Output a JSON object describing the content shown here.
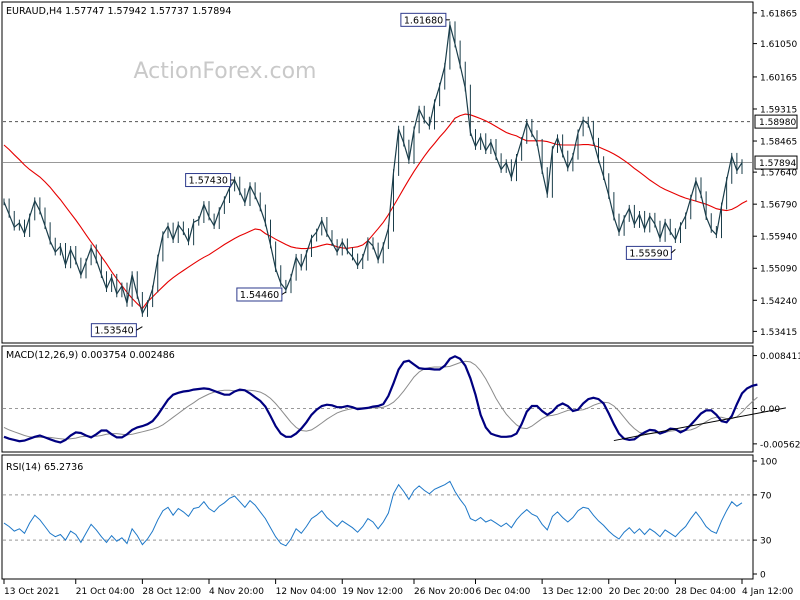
{
  "watermark": "ActionForex.com",
  "chart_data": [
    {
      "type": "line",
      "panel": "price",
      "title": "EURAUD,H4  1.57747  1.57942  1.57737  1.57894",
      "ylim": [
        1.5316,
        1.621
      ],
      "y_ticks": [
        "1.61865",
        "1.61050",
        "1.60165",
        "1.59315",
        "1.58465",
        "1.57640",
        "1.56790",
        "1.55940",
        "1.55090",
        "1.54240",
        "1.53415"
      ],
      "reference_lines": [
        {
          "value": 1.5898,
          "label": "1.58980",
          "style": "dashed"
        },
        {
          "value": 1.57894,
          "label": "1.57894",
          "style": "solid"
        }
      ],
      "annotations": [
        {
          "label": "1.53540",
          "x": 27
        },
        {
          "label": "1.57430",
          "x": 45
        },
        {
          "label": "1.54460",
          "x": 55
        },
        {
          "label": "1.61680",
          "x": 87
        },
        {
          "label": "1.55590",
          "x": 131
        }
      ],
      "x_labels": [
        {
          "i": 0,
          "label": "13 Oct 2021"
        },
        {
          "i": 14,
          "label": "21 Oct 04:00"
        },
        {
          "i": 27,
          "label": "28 Oct 12:00"
        },
        {
          "i": 40,
          "label": "4 Nov 20:00"
        },
        {
          "i": 53,
          "label": "12 Nov 04:00"
        },
        {
          "i": 66,
          "label": "19 Nov 12:00"
        },
        {
          "i": 80,
          "label": "26 Nov 20:00"
        },
        {
          "i": 92,
          "label": "6 Dec 04:00"
        },
        {
          "i": 105,
          "label": "13 Dec 12:00"
        },
        {
          "i": 118,
          "label": "20 Dec 20:00"
        },
        {
          "i": 131,
          "label": "28 Dec 04:00"
        },
        {
          "i": 144,
          "label": "4 Jan 12:00"
        }
      ],
      "series": [
        {
          "name": "price",
          "color": "#1a3d4a",
          "values": [
            1.5685,
            1.5652,
            1.5618,
            1.5629,
            1.5601,
            1.5645,
            1.5688,
            1.5661,
            1.5622,
            1.5581,
            1.5552,
            1.5567,
            1.5518,
            1.5559,
            1.5528,
            1.5491,
            1.5526,
            1.5563,
            1.5531,
            1.5492,
            1.5455,
            1.5485,
            1.5441,
            1.5462,
            1.5416,
            1.5492,
            1.5437,
            1.5389,
            1.5415,
            1.5454,
            1.5536,
            1.5598,
            1.5621,
            1.5585,
            1.5624,
            1.5606,
            1.5579,
            1.5631,
            1.5638,
            1.5678,
            1.5645,
            1.5622,
            1.5662,
            1.5691,
            1.5722,
            1.5743,
            1.5712,
            1.5683,
            1.5728,
            1.5701,
            1.5669,
            1.5629,
            1.5571,
            1.5508,
            1.5469,
            1.5452,
            1.5485,
            1.5538,
            1.5512,
            1.5548,
            1.5589,
            1.5605,
            1.5636,
            1.5601,
            1.5577,
            1.5552,
            1.5579,
            1.5555,
            1.5539,
            1.5516,
            1.5538,
            1.5582,
            1.5568,
            1.5531,
            1.5569,
            1.5615,
            1.5763,
            1.5878,
            1.5841,
            1.5795,
            1.5876,
            1.5931,
            1.5902,
            1.5886,
            1.5948,
            1.5992,
            1.6045,
            1.6155,
            1.6104,
            1.6048,
            1.5987,
            1.5869,
            1.5832,
            1.5858,
            1.5821,
            1.5843,
            1.5805,
            1.5771,
            1.5789,
            1.5749,
            1.5803,
            1.5848,
            1.5896,
            1.5866,
            1.5843,
            1.5768,
            1.5705,
            1.5824,
            1.5855,
            1.5812,
            1.5775,
            1.5806,
            1.5868,
            1.5902,
            1.5891,
            1.5846,
            1.5797,
            1.5752,
            1.5702,
            1.5645,
            1.5604,
            1.5641,
            1.5668,
            1.5625,
            1.5652,
            1.5613,
            1.5647,
            1.5626,
            1.5588,
            1.5631,
            1.5606,
            1.5585,
            1.5622,
            1.5648,
            1.5695,
            1.5741,
            1.5704,
            1.5646,
            1.5612,
            1.5598,
            1.5674,
            1.5742,
            1.5806,
            1.5768,
            1.5789
          ]
        },
        {
          "name": "ma",
          "color": "#e60000",
          "values": [
            1.5836,
            1.5824,
            1.581,
            1.5797,
            1.5783,
            1.5771,
            1.5761,
            1.5751,
            1.5738,
            1.5724,
            1.5707,
            1.5691,
            1.5673,
            1.5655,
            1.5637,
            1.5618,
            1.5598,
            1.5579,
            1.556,
            1.554,
            1.5521,
            1.55,
            1.5481,
            1.5463,
            1.5445,
            1.5429,
            1.5415,
            1.5402,
            1.542,
            1.5433,
            1.5447,
            1.546,
            1.5473,
            1.5484,
            1.5494,
            1.5503,
            1.5512,
            1.5521,
            1.553,
            1.5538,
            1.5545,
            1.5554,
            1.5563,
            1.5572,
            1.558,
            1.5588,
            1.5595,
            1.5601,
            1.5607,
            1.5613,
            1.5611,
            1.5601,
            1.5594,
            1.5586,
            1.5579,
            1.5572,
            1.5566,
            1.5563,
            1.5561,
            1.5561,
            1.5563,
            1.5566,
            1.557,
            1.5573,
            1.5571,
            1.5566,
            1.5563,
            1.5562,
            1.5564,
            1.5566,
            1.5571,
            1.5582,
            1.5598,
            1.5614,
            1.5631,
            1.5651,
            1.5674,
            1.5697,
            1.5721,
            1.5744,
            1.5766,
            1.5786,
            1.5806,
            1.5824,
            1.584,
            1.5857,
            1.5872,
            1.5889,
            1.5907,
            1.5914,
            1.5918,
            1.5916,
            1.5911,
            1.5906,
            1.59,
            1.5893,
            1.5885,
            1.5877,
            1.5869,
            1.5864,
            1.586,
            1.5853,
            1.5847,
            1.5847,
            1.5847,
            1.5847,
            1.5845,
            1.5841,
            1.5837,
            1.5836,
            1.5836,
            1.5836,
            1.5836,
            1.5837,
            1.5837,
            1.5835,
            1.5831,
            1.5825,
            1.5819,
            1.5812,
            1.5804,
            1.5795,
            1.5785,
            1.5774,
            1.5764,
            1.5754,
            1.5743,
            1.5734,
            1.5725,
            1.5718,
            1.5712,
            1.5706,
            1.57,
            1.5695,
            1.5691,
            1.5687,
            1.5683,
            1.5679,
            1.5673,
            1.5667,
            1.5664,
            1.5662,
            1.5665,
            1.5672,
            1.5681,
            1.5688
          ]
        }
      ]
    },
    {
      "type": "line",
      "panel": "macd",
      "title": "MACD(12,26,9) 0.003754 0.002486",
      "ylim": [
        -0.0066,
        0.0093
      ],
      "y_ticks": [
        "0.008411",
        "0.00",
        "-0.005625"
      ],
      "zero_line": 0,
      "series": [
        {
          "name": "macd",
          "color": "#000080",
          "values": [
            -0.0045,
            -0.0048,
            -0.005,
            -0.0052,
            -0.0051,
            -0.0048,
            -0.0045,
            -0.0043,
            -0.0046,
            -0.0049,
            -0.0052,
            -0.0054,
            -0.005,
            -0.0043,
            -0.0038,
            -0.0039,
            -0.0043,
            -0.0046,
            -0.0041,
            -0.0035,
            -0.0035,
            -0.0041,
            -0.0046,
            -0.0046,
            -0.0041,
            -0.0034,
            -0.003,
            -0.0028,
            -0.0025,
            -0.002,
            -0.001,
            0.0002,
            0.0014,
            0.0022,
            0.0025,
            0.0027,
            0.0028,
            0.003,
            0.0031,
            0.0032,
            0.0031,
            0.0028,
            0.0025,
            0.0022,
            0.0022,
            0.0027,
            0.003,
            0.0029,
            0.0024,
            0.0018,
            0.0012,
            0.0003,
            -0.0012,
            -0.0028,
            -0.004,
            -0.0045,
            -0.0045,
            -0.004,
            -0.0032,
            -0.0022,
            -0.001,
            -0.0002,
            0.0004,
            0.0006,
            0.0005,
            0.0002,
            0.0002,
            0.0004,
            0.0002,
            -0.0001,
            0.0,
            0.0001,
            0.0003,
            0.0004,
            0.0007,
            0.002,
            0.004,
            0.0062,
            0.0074,
            0.0076,
            0.007,
            0.0064,
            0.0063,
            0.0063,
            0.0062,
            0.0062,
            0.0068,
            0.0079,
            0.0083,
            0.0079,
            0.0068,
            0.0048,
            0.0022,
            -0.001,
            -0.003,
            -0.004,
            -0.0043,
            -0.0045,
            -0.0045,
            -0.0044,
            -0.004,
            -0.0025,
            -0.0005,
            0.0004,
            0.0004,
            -0.0004,
            -0.001,
            -0.0005,
            0.0004,
            0.0008,
            0.0004,
            -0.0004,
            -0.0002,
            0.0008,
            0.0015,
            0.0017,
            0.0015,
            0.0008,
            -0.0008,
            -0.0025,
            -0.004,
            -0.0048,
            -0.005,
            -0.0049,
            -0.0043,
            -0.0038,
            -0.0034,
            -0.0035,
            -0.004,
            -0.0037,
            -0.0032,
            -0.0033,
            -0.0038,
            -0.0034,
            -0.0026,
            -0.0017,
            -0.0008,
            -0.0003,
            -0.0003,
            -0.001,
            -0.002,
            -0.0022,
            -0.0012,
            0.0007,
            0.0024,
            0.0032,
            0.0036,
            0.0038
          ]
        },
        {
          "name": "signal",
          "color": "#8c8c8c",
          "values": [
            -0.003,
            -0.0034,
            -0.0037,
            -0.004,
            -0.0043,
            -0.0045,
            -0.0046,
            -0.0046,
            -0.0046,
            -0.0046,
            -0.0047,
            -0.0048,
            -0.0049,
            -0.0048,
            -0.0047,
            -0.0045,
            -0.0044,
            -0.0044,
            -0.0044,
            -0.0043,
            -0.0041,
            -0.004,
            -0.004,
            -0.0041,
            -0.0042,
            -0.0041,
            -0.0039,
            -0.0037,
            -0.0035,
            -0.0033,
            -0.003,
            -0.0026,
            -0.002,
            -0.0014,
            -0.0008,
            -0.0002,
            0.0004,
            0.0009,
            0.0015,
            0.0019,
            0.0023,
            0.0026,
            0.0028,
            0.0029,
            0.0029,
            0.0028,
            0.0028,
            0.0029,
            0.0029,
            0.0028,
            0.0026,
            0.0022,
            0.0016,
            0.0008,
            -0.0002,
            -0.0012,
            -0.0022,
            -0.003,
            -0.0035,
            -0.0036,
            -0.0034,
            -0.0029,
            -0.0023,
            -0.0017,
            -0.0012,
            -0.0007,
            -0.0004,
            -0.0002,
            0.0,
            0.0001,
            0.0001,
            0.0001,
            0.0001,
            0.0001,
            0.0002,
            0.0005,
            0.001,
            0.0018,
            0.0028,
            0.0039,
            0.005,
            0.0058,
            0.0063,
            0.0065,
            0.0066,
            0.0066,
            0.0066,
            0.0067,
            0.007,
            0.0073,
            0.0075,
            0.0074,
            0.0069,
            0.006,
            0.0047,
            0.0032,
            0.0016,
            0.0003,
            -0.0009,
            -0.0018,
            -0.0026,
            -0.0031,
            -0.0032,
            -0.0028,
            -0.0022,
            -0.0016,
            -0.0012,
            -0.0011,
            -0.0009,
            -0.0006,
            -0.0003,
            -0.0002,
            -0.0003,
            -0.0002,
            0.0001,
            0.0005,
            0.0008,
            0.001,
            0.0009,
            0.0004,
            -0.0004,
            -0.0014,
            -0.0024,
            -0.0032,
            -0.0038,
            -0.004,
            -0.004,
            -0.0039,
            -0.0039,
            -0.0038,
            -0.0036,
            -0.0035,
            -0.0035,
            -0.0035,
            -0.0034,
            -0.0031,
            -0.0026,
            -0.0021,
            -0.0016,
            -0.0014,
            -0.0014,
            -0.0016,
            -0.0016,
            -0.0013,
            -0.0006,
            0.0003,
            0.0011,
            0.0018
          ]
        }
      ],
      "trendline": {
        "x": [
          119,
          151
        ],
        "y": [
          -0.0051,
          0.0001
        ]
      }
    },
    {
      "type": "line",
      "panel": "rsi",
      "title": "RSI(14) 65.2736",
      "ylim": [
        0,
        100
      ],
      "y_ticks": [
        "100",
        "70",
        "30",
        "0"
      ],
      "levels": [
        70,
        30
      ],
      "series": [
        {
          "name": "rsi",
          "color": "#1e78c8",
          "values": [
            45,
            42,
            38,
            40,
            36,
            45,
            52,
            48,
            42,
            36,
            33,
            35,
            30,
            38,
            35,
            28,
            36,
            44,
            39,
            33,
            28,
            34,
            29,
            32,
            27,
            40,
            34,
            26,
            31,
            38,
            48,
            56,
            59,
            52,
            58,
            55,
            51,
            58,
            59,
            64,
            58,
            55,
            60,
            63,
            67,
            69,
            64,
            59,
            65,
            61,
            55,
            49,
            41,
            33,
            27,
            25,
            31,
            40,
            36,
            42,
            49,
            52,
            56,
            50,
            46,
            42,
            47,
            44,
            41,
            37,
            42,
            49,
            46,
            40,
            46,
            54,
            71,
            79,
            73,
            66,
            74,
            78,
            74,
            71,
            75,
            77,
            79,
            82,
            73,
            66,
            60,
            49,
            47,
            50,
            46,
            48,
            45,
            42,
            45,
            41,
            48,
            53,
            57,
            53,
            51,
            44,
            39,
            51,
            55,
            50,
            46,
            50,
            56,
            59,
            58,
            52,
            47,
            43,
            38,
            34,
            31,
            37,
            41,
            36,
            40,
            35,
            40,
            37,
            33,
            39,
            36,
            33,
            38,
            42,
            49,
            55,
            49,
            42,
            38,
            36,
            47,
            56,
            64,
            60,
            63
          ]
        }
      ]
    }
  ]
}
